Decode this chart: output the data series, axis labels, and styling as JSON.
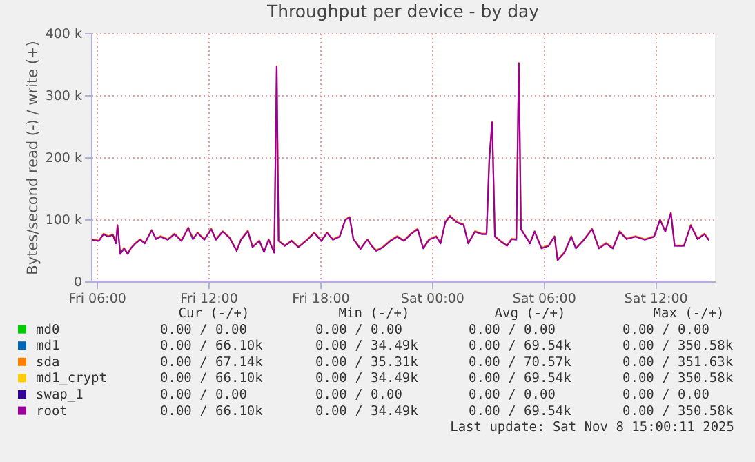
{
  "chart_data": {
    "type": "line",
    "title": "Throughput per device - by day",
    "ylabel": "Bytes/second read (-) / write (+)",
    "xlim": [
      "2025-11-07T05:42",
      "2025-11-08T15:12"
    ],
    "ylim": [
      0,
      400000
    ],
    "xticks": [
      {
        "value": "2025-11-07T06:00",
        "label": "Fri 06:00"
      },
      {
        "value": "2025-11-07T12:00",
        "label": "Fri 12:00"
      },
      {
        "value": "2025-11-07T18:00",
        "label": "Fri 18:00"
      },
      {
        "value": "2025-11-08T00:00",
        "label": "Sat 00:00"
      },
      {
        "value": "2025-11-08T06:00",
        "label": "Sat 06:00"
      },
      {
        "value": "2025-11-08T12:00",
        "label": "Sat 12:00"
      }
    ],
    "yticks": [
      0,
      {
        "value": 100000,
        "label": "100 k"
      },
      {
        "value": 200000,
        "label": "200 k"
      },
      {
        "value": 300000,
        "label": "300 k"
      },
      {
        "value": 400000,
        "label": "400 k"
      }
    ],
    "grid": true,
    "legend": "bottom",
    "marker": "none",
    "line_style": "solid",
    "x": [
      "2025-11-07T05:45",
      "2025-11-07T06:07",
      "2025-11-07T06:22",
      "2025-11-07T06:37",
      "2025-11-07T06:52",
      "2025-11-07T07:02",
      "2025-11-07T07:07",
      "2025-11-07T07:16",
      "2025-11-07T07:28",
      "2025-11-07T07:40",
      "2025-11-07T07:50",
      "2025-11-07T08:05",
      "2025-11-07T08:20",
      "2025-11-07T08:35",
      "2025-11-07T08:57",
      "2025-11-07T09:11",
      "2025-11-07T09:26",
      "2025-11-07T09:49",
      "2025-11-07T10:11",
      "2025-11-07T10:33",
      "2025-11-07T10:55",
      "2025-11-07T11:10",
      "2025-11-07T11:25",
      "2025-11-07T11:47",
      "2025-11-07T12:09",
      "2025-11-07T12:24",
      "2025-11-07T12:46",
      "2025-11-07T13:08",
      "2025-11-07T13:31",
      "2025-11-07T13:45",
      "2025-11-07T14:07",
      "2025-11-07T14:22",
      "2025-11-07T14:44",
      "2025-11-07T14:59",
      "2025-11-07T15:14",
      "2025-11-07T15:32",
      "2025-11-07T15:40",
      "2025-11-07T15:46",
      "2025-11-07T16:06",
      "2025-11-07T16:28",
      "2025-11-07T16:50",
      "2025-11-07T17:19",
      "2025-11-07T17:41",
      "2025-11-07T18:04",
      "2025-11-07T18:22",
      "2025-11-07T18:41",
      "2025-11-07T19:03",
      "2025-11-07T19:21",
      "2025-11-07T19:35",
      "2025-11-07T19:47",
      "2025-11-07T20:10",
      "2025-11-07T20:32",
      "2025-11-07T20:46",
      "2025-11-07T21:01",
      "2025-11-07T21:23",
      "2025-11-07T21:46",
      "2025-11-07T22:08",
      "2025-11-07T22:30",
      "2025-11-07T22:52",
      "2025-11-07T23:14",
      "2025-11-07T23:32",
      "2025-11-07T23:51",
      "2025-11-08T00:14",
      "2025-11-08T00:28",
      "2025-11-08T00:43",
      "2025-11-08T00:58",
      "2025-11-08T01:20",
      "2025-11-08T01:42",
      "2025-11-08T01:57",
      "2025-11-08T02:19",
      "2025-11-08T02:41",
      "2025-11-08T02:56",
      "2025-11-08T03:05",
      "2025-11-08T03:14",
      "2025-11-08T03:23",
      "2025-11-08T03:40",
      "2025-11-08T04:02",
      "2025-11-08T04:17",
      "2025-11-08T04:32",
      "2025-11-08T04:40",
      "2025-11-08T04:47",
      "2025-11-08T05:02",
      "2025-11-08T05:16",
      "2025-11-08T05:31",
      "2025-11-08T05:53",
      "2025-11-08T06:16",
      "2025-11-08T06:35",
      "2025-11-08T06:45",
      "2025-11-08T07:07",
      "2025-11-08T07:29",
      "2025-11-08T07:44",
      "2025-11-08T08:07",
      "2025-11-08T08:36",
      "2025-11-08T08:58",
      "2025-11-08T09:21",
      "2025-11-08T09:43",
      "2025-11-08T10:05",
      "2025-11-08T10:27",
      "2025-11-08T10:56",
      "2025-11-08T11:26",
      "2025-11-08T11:56",
      "2025-11-08T12:15",
      "2025-11-08T12:32",
      "2025-11-08T12:50",
      "2025-11-08T13:02",
      "2025-11-08T13:32",
      "2025-11-08T13:54",
      "2025-11-08T14:16",
      "2025-11-08T14:38",
      "2025-11-08T14:53"
    ],
    "series": [
      {
        "name": "md0",
        "color": "#00cc00",
        "values": [
          null,
          null,
          null,
          null,
          null,
          null,
          null,
          null,
          null,
          null,
          null,
          null,
          null,
          null,
          null,
          null,
          null,
          null,
          null,
          null,
          null,
          null,
          null,
          null,
          null,
          null,
          null,
          null,
          null,
          null,
          null,
          null,
          null,
          null,
          null,
          null,
          null,
          null,
          null,
          null,
          null,
          null,
          null,
          null,
          null,
          null,
          null,
          null,
          null,
          null,
          null,
          null,
          null,
          null,
          null,
          null,
          null,
          null,
          null,
          null,
          null,
          null,
          null,
          null,
          null,
          null,
          null,
          null,
          null,
          null,
          null,
          null,
          null,
          null,
          null,
          null,
          null,
          null,
          null,
          null,
          null,
          null,
          null,
          null,
          null,
          null,
          null,
          null,
          null,
          null,
          null,
          null,
          null,
          null,
          null,
          null,
          null,
          null,
          null,
          null,
          null,
          null,
          null,
          null,
          null,
          null,
          null,
          null,
          null,
          null
        ]
      },
      {
        "name": "md1",
        "color": "#0066b3",
        "values": [
          null,
          null,
          null,
          null,
          null,
          null,
          null,
          null,
          null,
          null,
          null,
          null,
          null,
          null,
          null,
          null,
          null,
          null,
          null,
          null,
          null,
          null,
          null,
          null,
          null,
          null,
          null,
          null,
          null,
          null,
          null,
          null,
          null,
          null,
          null,
          null,
          null,
          null,
          null,
          null,
          null,
          null,
          null,
          null,
          null,
          null,
          null,
          null,
          null,
          null,
          null,
          null,
          null,
          null,
          null,
          null,
          null,
          null,
          null,
          null,
          null,
          null,
          null,
          null,
          null,
          null,
          null,
          null,
          null,
          null,
          null,
          null,
          null,
          null,
          null,
          null,
          null,
          null,
          null,
          null,
          null,
          null,
          null,
          null,
          null,
          null,
          null,
          null,
          null,
          null,
          null,
          null,
          null,
          null,
          null,
          null,
          null,
          null,
          null,
          null,
          null,
          null,
          null,
          null,
          null,
          null,
          null,
          null,
          null,
          null
        ]
      },
      {
        "name": "sda",
        "color": "#ff8000",
        "values": [
          68000,
          66000,
          77000,
          73000,
          76000,
          62000,
          91000,
          45000,
          54000,
          45000,
          54000,
          62000,
          68000,
          62000,
          83000,
          69000,
          73000,
          68000,
          77000,
          66000,
          87000,
          69000,
          79000,
          68000,
          85000,
          68000,
          81000,
          71000,
          50000,
          68000,
          82000,
          56000,
          66000,
          48000,
          68000,
          47000,
          347000,
          66000,
          58000,
          66000,
          56000,
          68000,
          79000,
          66000,
          79000,
          68000,
          73000,
          100000,
          104000,
          69000,
          53000,
          68000,
          58000,
          50000,
          56000,
          66000,
          73000,
          66000,
          77000,
          85000,
          54000,
          68000,
          73000,
          62000,
          96000,
          106000,
          96000,
          92000,
          62000,
          81000,
          77000,
          77000,
          199000,
          257000,
          73000,
          66000,
          58000,
          69000,
          68000,
          352000,
          85000,
          73000,
          62000,
          81000,
          54000,
          58000,
          73000,
          35000,
          47000,
          73000,
          54000,
          66000,
          85000,
          54000,
          62000,
          54000,
          81000,
          69000,
          73000,
          68000,
          73000,
          100000,
          81000,
          111000,
          58000,
          58000,
          91000,
          69000,
          77000,
          67000
        ]
      },
      {
        "name": "md1_crypt",
        "color": "#ffcc00",
        "values": [
          null,
          null,
          null,
          null,
          null,
          null,
          null,
          null,
          null,
          null,
          null,
          null,
          null,
          null,
          null,
          null,
          null,
          null,
          null,
          null,
          null,
          null,
          null,
          null,
          null,
          null,
          null,
          null,
          null,
          null,
          null,
          null,
          null,
          null,
          null,
          null,
          null,
          null,
          null,
          null,
          null,
          null,
          null,
          null,
          null,
          null,
          null,
          null,
          null,
          null,
          null,
          null,
          null,
          null,
          null,
          null,
          null,
          null,
          null,
          null,
          null,
          null,
          null,
          null,
          null,
          null,
          null,
          null,
          null,
          null,
          null,
          null,
          null,
          null,
          null,
          null,
          null,
          null,
          null,
          null,
          null,
          null,
          null,
          null,
          null,
          null,
          null,
          null,
          null,
          null,
          null,
          null,
          null,
          null,
          null,
          null,
          null,
          null,
          null,
          null,
          null,
          null,
          null,
          null,
          null,
          null,
          null,
          null,
          null,
          null
        ]
      },
      {
        "name": "swap_1",
        "color": "#330099",
        "values": [
          0,
          0,
          0,
          0,
          0,
          0,
          0,
          0,
          0,
          0,
          0,
          0,
          0,
          0,
          0,
          0,
          0,
          0,
          0,
          0,
          0,
          0,
          0,
          0,
          0,
          0,
          0,
          0,
          0,
          0,
          0,
          0,
          0,
          0,
          0,
          0,
          0,
          0,
          0,
          0,
          0,
          0,
          0,
          0,
          0,
          0,
          0,
          0,
          0,
          0,
          0,
          0,
          0,
          0,
          0,
          0,
          0,
          0,
          0,
          0,
          0,
          0,
          0,
          0,
          0,
          0,
          0,
          0,
          0,
          0,
          0,
          0,
          0,
          0,
          0,
          0,
          0,
          0,
          0,
          0,
          0,
          0,
          0,
          0,
          0,
          0,
          0,
          0,
          0,
          0,
          0,
          0,
          0,
          0,
          0,
          0,
          0,
          0,
          0,
          0,
          0,
          0,
          0,
          0,
          0,
          0,
          0,
          0,
          0,
          0
        ]
      },
      {
        "name": "root",
        "color": "#990099",
        "values": [
          67000,
          65000,
          76000,
          72000,
          75000,
          61000,
          90000,
          44000,
          53000,
          44000,
          53000,
          61000,
          67000,
          61000,
          82000,
          68000,
          72000,
          67000,
          76000,
          65000,
          86000,
          68000,
          78000,
          67000,
          84000,
          67000,
          80000,
          70000,
          49000,
          67000,
          81000,
          55000,
          65000,
          47000,
          67000,
          46000,
          346000,
          65000,
          57000,
          65000,
          55000,
          67000,
          78000,
          65000,
          78000,
          67000,
          72000,
          99000,
          103000,
          68000,
          52000,
          67000,
          57000,
          49000,
          55000,
          65000,
          72000,
          65000,
          76000,
          84000,
          53000,
          67000,
          72000,
          61000,
          95000,
          105000,
          95000,
          91000,
          61000,
          80000,
          76000,
          76000,
          198000,
          256000,
          72000,
          65000,
          57000,
          68000,
          67000,
          351000,
          84000,
          72000,
          61000,
          80000,
          53000,
          57000,
          72000,
          34000,
          46000,
          72000,
          53000,
          65000,
          84000,
          53000,
          61000,
          53000,
          80000,
          68000,
          72000,
          67000,
          72000,
          99000,
          80000,
          110000,
          57000,
          57000,
          90000,
          68000,
          76000,
          66000
        ]
      }
    ],
    "annotations": [
      "Cur (-/+)",
      "Min (-/+)",
      "Avg (-/+)",
      "Max (-/+)",
      "0.00 /   0.00",
      "0.00 /   0.00",
      "0.00 /   0.00",
      "0.00 /   0.00",
      "0.00 /  66.10k",
      "0.00 /  34.49k",
      "0.00 /  69.54k",
      "0.00 / 350.58k",
      "0.00 /  67.14k",
      "0.00 /  35.31k",
      "0.00 /  70.57k",
      "0.00 / 351.63k",
      "0.00 /  66.10k",
      "0.00 /  34.49k",
      "0.00 /  69.54k",
      "0.00 / 350.58k",
      "0.00 /   0.00",
      "0.00 /   0.00",
      "0.00 /   0.00",
      "0.00 /   0.00",
      "0.00 /  66.10k",
      "0.00 /  34.49k",
      "0.00 /  69.54k",
      "0.00 / 350.58k",
      "Last update: Sat Nov  8 15:00:11 2025"
    ]
  }
}
